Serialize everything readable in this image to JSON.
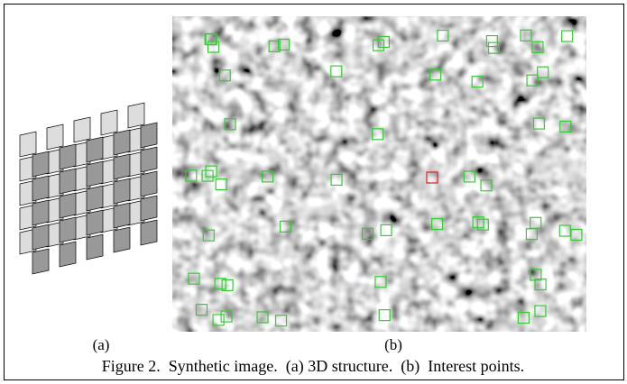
{
  "figure": {
    "panel_a_label": "(a)",
    "panel_b_label": "(b)",
    "caption": "Figure 2.  Synthetic image.  (a) 3D structure.  (b)  Interest points."
  }
}
